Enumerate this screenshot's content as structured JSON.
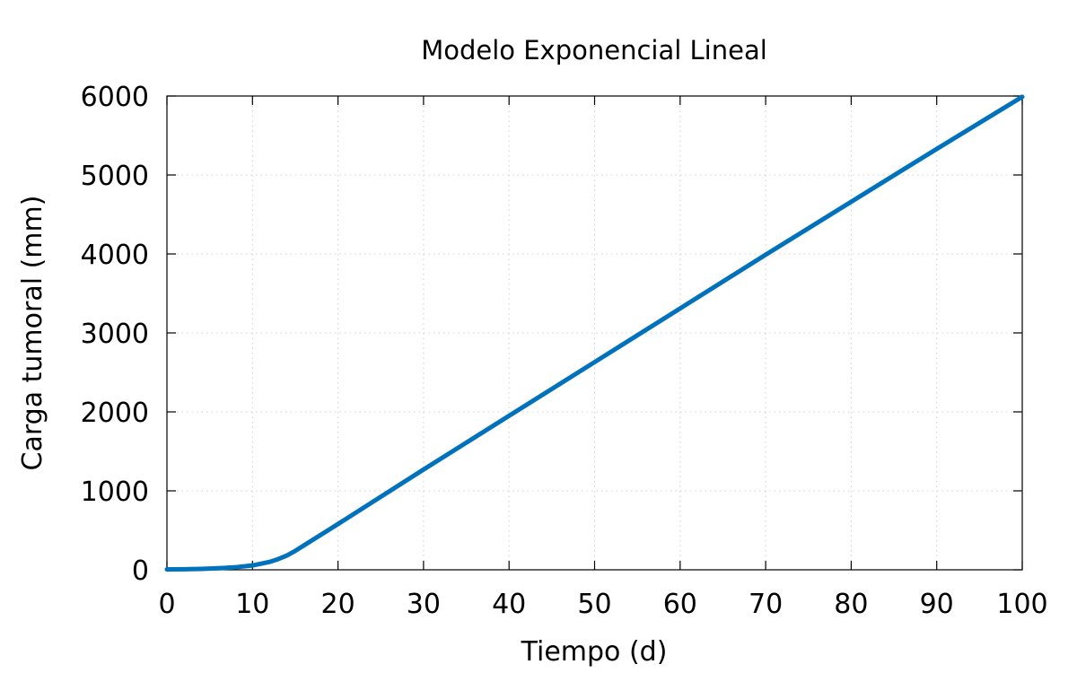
{
  "chart_data": {
    "type": "line",
    "title": "Modelo Exponencial Lineal",
    "xlabel": "Tiempo (d)",
    "ylabel": "Carga tumoral (mm)",
    "xlim": [
      0,
      100
    ],
    "ylim": [
      0,
      6000
    ],
    "xticks": [
      0,
      10,
      20,
      30,
      40,
      50,
      60,
      70,
      80,
      90,
      100
    ],
    "yticks": [
      0,
      1000,
      2000,
      3000,
      4000,
      5000,
      6000
    ],
    "grid": true,
    "series": [
      {
        "color": "#0072bd",
        "x": [
          0,
          2,
          4,
          6,
          8,
          10,
          12,
          13,
          14,
          15,
          20,
          30,
          40,
          50,
          60,
          70,
          80,
          90,
          100
        ],
        "y": [
          5,
          7,
          12,
          20,
          32,
          55,
          100,
          135,
          180,
          240,
          580,
          1270,
          1950,
          2630,
          3310,
          3990,
          4660,
          5330,
          5990
        ]
      }
    ]
  }
}
